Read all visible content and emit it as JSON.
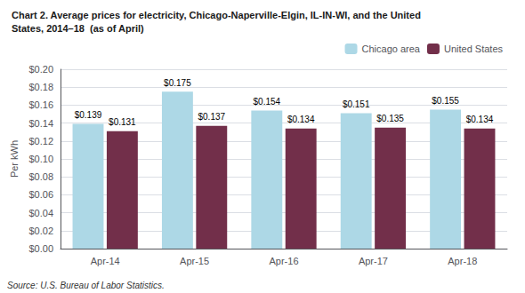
{
  "chart_data": {
    "type": "bar",
    "title": "Chart 2. Average prices for electricity, Chicago-Naperville-Elgin, IL-IN-WI, and the United\nStates, 2014–18  (as of April)",
    "ylabel": "Per kWh",
    "annotations": [
      "Source: U.S. Bureau of Labor Statistics."
    ],
    "categories": [
      "Apr-14",
      "Apr-15",
      "Apr-16",
      "Apr-17",
      "Apr-18"
    ],
    "series": [
      {
        "name": "Chicago area",
        "color": "#ADD8E6",
        "values": [
          0.139,
          0.175,
          0.154,
          0.151,
          0.155
        ],
        "value_labels": [
          "$0.139",
          "$0.175",
          "$0.154",
          "$0.151",
          "$0.155"
        ]
      },
      {
        "name": "United States",
        "color": "#722F4A",
        "values": [
          0.131,
          0.137,
          0.134,
          0.135,
          0.134
        ],
        "value_labels": [
          "$0.131",
          "$0.137",
          "$0.134",
          "$0.135",
          "$0.134"
        ]
      }
    ],
    "ylim": [
      0.0,
      0.2
    ],
    "yticks": [
      {
        "value": 0.0,
        "label": "$0.00"
      },
      {
        "value": 0.02,
        "label": "$0.02"
      },
      {
        "value": 0.04,
        "label": "$0.04"
      },
      {
        "value": 0.06,
        "label": "$0.06"
      },
      {
        "value": 0.08,
        "label": "$0.08"
      },
      {
        "value": 0.1,
        "label": "$0.10"
      },
      {
        "value": 0.12,
        "label": "$0.12"
      },
      {
        "value": 0.14,
        "label": "$0.14"
      },
      {
        "value": 0.16,
        "label": "$0.16"
      },
      {
        "value": 0.18,
        "label": "$0.18"
      },
      {
        "value": 0.2,
        "label": "$0.20"
      }
    ],
    "grid": true,
    "legend": "upper right",
    "data_labels": true
  }
}
